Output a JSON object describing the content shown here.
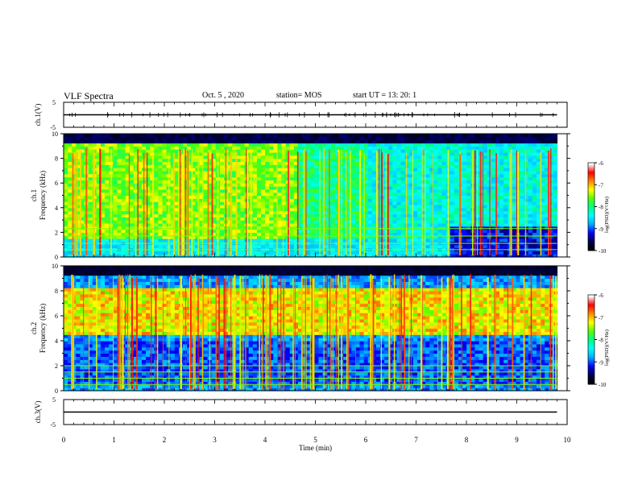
{
  "header": {
    "title": "VLF Spectra",
    "date": "Oct. 5 , 2020",
    "station": "station= MOS",
    "start": "start  UT =   13: 20: 1"
  },
  "chart_data": [
    {
      "type": "line",
      "panel": "ch1-waveform",
      "ylabel": "ch.1(V)",
      "ylim": [
        -5,
        5
      ],
      "yticks": [
        "5",
        "-5"
      ],
      "x": [
        0,
        1,
        2,
        3,
        4,
        5,
        6,
        7,
        8,
        9,
        9.8
      ],
      "values": [
        0,
        0,
        0,
        0,
        0,
        0,
        0,
        0,
        0,
        0,
        0
      ],
      "line_color": "#000000"
    },
    {
      "type": "heatmap",
      "panel": "ch1-spectrogram",
      "ylabel": "ch.1\nFrequency (kHz)",
      "ylim": [
        0,
        10
      ],
      "yticks": [
        "0",
        "2",
        "4",
        "6",
        "8",
        "10"
      ],
      "xlim": [
        0,
        10
      ],
      "data_end_min": 9.8,
      "colorbar": {
        "label": "log(PSD)(V²/Hz)",
        "ticks": [
          "-6",
          "-7",
          "-8",
          "-9",
          "-10"
        ],
        "range": [
          -10,
          -6
        ]
      },
      "description_hidden": "broadband sferics over green/cyan background; dense green 0-4.6 min"
    },
    {
      "type": "heatmap",
      "panel": "ch2-spectrogram",
      "ylabel": "ch.2\nFrequency (kHz)",
      "ylim": [
        0,
        10
      ],
      "yticks": [
        "0",
        "2",
        "4",
        "6",
        "8",
        "10"
      ],
      "xlim": [
        0,
        10
      ],
      "data_end_min": 9.8,
      "colorbar": {
        "label": "log(PSD)(V²/Hz)",
        "ticks": [
          "-6",
          "-7",
          "-8",
          "-9",
          "-10"
        ],
        "range": [
          -10,
          -6
        ]
      }
    },
    {
      "type": "line",
      "panel": "ch3-waveform",
      "ylabel": "ch.3(V)",
      "ylim": [
        -5,
        5
      ],
      "yticks": [
        "5",
        "-5"
      ],
      "x": [
        0,
        1,
        2,
        3,
        4,
        5,
        6,
        7,
        8,
        9,
        9.8
      ],
      "values": [
        0,
        0,
        0,
        0,
        0,
        0,
        0,
        0,
        0,
        0,
        0
      ],
      "line_color": "#000000"
    }
  ],
  "xaxis": {
    "label": "Time (min)",
    "ticks": [
      "0",
      "1",
      "2",
      "3",
      "4",
      "5",
      "6",
      "7",
      "8",
      "9",
      "10"
    ],
    "range": [
      0,
      10
    ]
  },
  "colors": {
    "colormap": [
      "#000000",
      "#00004a",
      "#0000ff",
      "#00aaff",
      "#00ffff",
      "#00ff88",
      "#55ff00",
      "#ffff00",
      "#ff8800",
      "#ff0000",
      "#ffffff"
    ]
  }
}
